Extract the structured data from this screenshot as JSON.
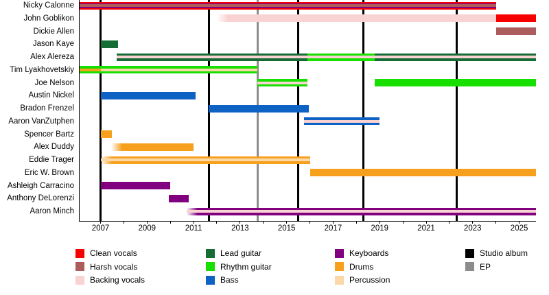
{
  "chart_data": {
    "type": "bar",
    "subtype": "gantt_member_timeline",
    "title": "",
    "x_axis": {
      "min": 2006.1,
      "max": 2025.72,
      "tick_years": [
        2006,
        2007,
        2008,
        2009,
        2010,
        2011,
        2012,
        2013,
        2014,
        2015,
        2016,
        2017,
        2018,
        2019,
        2020,
        2021,
        2022,
        2023,
        2024,
        2025
      ],
      "label_years": [
        "2007",
        "2009",
        "2011",
        "2013",
        "2015",
        "2017",
        "2019",
        "2021",
        "2023",
        "2025"
      ],
      "grid": false
    },
    "colors": {
      "clean_vocals": "#F70000",
      "harsh_vocals": "#AC5C5C",
      "backing_vocals": "#F9D2D2",
      "lead_guitar": "#156C35",
      "rhythm_guitar": "#17E000",
      "bass": "#0E62C4",
      "keyboards": "#800080",
      "drums": "#F7A01E",
      "percussion": "#FAD8A8",
      "studio_album": "#000000",
      "ep": "#8C8C8C"
    },
    "events": {
      "studio_albums": [
        2007.0,
        2011.65,
        2015.5,
        2018.3,
        2022.3
      ],
      "eps": [
        2013.75
      ]
    },
    "members": [
      {
        "name": "Nicky Calonne",
        "segments": [
          {
            "role": "clean_vocals",
            "start": 2006.1,
            "end": 2024.0,
            "stripes": [
              {
                "role": "keyboards",
                "height": 7
              },
              {
                "role": "harsh_vocals",
                "height": 4
              }
            ]
          }
        ]
      },
      {
        "name": "John Goblikon",
        "segments": [
          {
            "role": "backing_vocals",
            "start": 2012.0,
            "end": 2024.0,
            "fade_in": true
          },
          {
            "role": "clean_vocals",
            "start": 2024.0,
            "end": 2025.72
          }
        ]
      },
      {
        "name": "Dickie Allen",
        "segments": [
          {
            "role": "harsh_vocals",
            "start": 2024.0,
            "end": 2025.72
          }
        ]
      },
      {
        "name": "Jason Kaye",
        "segments": [
          {
            "role": "lead_guitar",
            "start": 2007.0,
            "end": 2007.75
          }
        ]
      },
      {
        "name": "Alex Alereza",
        "segments": [
          {
            "role": "lead_guitar",
            "start": 2007.7,
            "end": 2025.72,
            "stripes": [
              {
                "role": "backing_vocals",
                "height": 4
              }
            ]
          },
          {
            "role": "rhythm_guitar",
            "start": 2015.9,
            "end": 2018.8
          }
        ]
      },
      {
        "name": "Tim Lyakhovetskiy",
        "segments": [
          {
            "role": "rhythm_guitar",
            "start": 2006.1,
            "end": 2013.75,
            "stripes": [
              {
                "role": "drums",
                "start": 2006.1,
                "end": 2007.0,
                "height": 4
              },
              {
                "role": "percussion",
                "start": 2007.0,
                "end": 2013.75,
                "height": 4
              }
            ]
          }
        ]
      },
      {
        "name": "Joe Nelson",
        "segments": [
          {
            "role": "rhythm_guitar",
            "start": 2013.75,
            "end": 2015.9,
            "stripes": [
              {
                "role": "backing_vocals",
                "height": 4
              }
            ]
          },
          {
            "role": "rhythm_guitar",
            "start": 2018.8,
            "end": 2025.72
          }
        ]
      },
      {
        "name": "Austin Nickel",
        "segments": [
          {
            "role": "bass",
            "start": 2007.0,
            "end": 2011.1
          }
        ]
      },
      {
        "name": "Bradon Frenzel",
        "segments": [
          {
            "role": "bass",
            "start": 2011.65,
            "end": 2015.95
          }
        ]
      },
      {
        "name": "Aaron VanZutphen",
        "segments": [
          {
            "role": "bass",
            "start": 2015.75,
            "end": 2019.0,
            "stripes": [
              {
                "role": "backing_vocals",
                "height": 4
              }
            ]
          }
        ]
      },
      {
        "name": "Spencer Bartz",
        "segments": [
          {
            "role": "drums",
            "start": 2007.0,
            "end": 2007.5
          }
        ]
      },
      {
        "name": "Alex Duddy",
        "segments": [
          {
            "role": "drums",
            "start": 2007.45,
            "end": 2011.0,
            "fade_in": true
          }
        ]
      },
      {
        "name": "Eddie Trager",
        "segments": [
          {
            "role": "drums",
            "start": 2007.0,
            "end": 2016.0,
            "fade_in": true,
            "stripes": [
              {
                "role": "percussion",
                "height": 4
              }
            ]
          }
        ]
      },
      {
        "name": "Eric W. Brown",
        "segments": [
          {
            "role": "drums",
            "start": 2016.0,
            "end": 2025.72
          }
        ]
      },
      {
        "name": "Ashleigh Carracino",
        "segments": [
          {
            "role": "keyboards",
            "start": 2007.0,
            "end": 2010.0
          }
        ]
      },
      {
        "name": "Anthony DeLorenzi",
        "segments": [
          {
            "role": "keyboards",
            "start": 2009.95,
            "end": 2010.8
          }
        ]
      },
      {
        "name": "Aaron Minch",
        "segments": [
          {
            "role": "keyboards",
            "start": 2010.7,
            "end": 2025.72,
            "fade_in": true,
            "stripes": [
              {
                "role": "backing_vocals",
                "height": 4
              }
            ]
          }
        ]
      }
    ]
  },
  "legend": {
    "columns": [
      [
        {
          "label": "Clean vocals",
          "color_key": "clean_vocals"
        },
        {
          "label": "Harsh vocals",
          "color_key": "harsh_vocals"
        },
        {
          "label": "Backing vocals",
          "color_key": "backing_vocals"
        }
      ],
      [
        {
          "label": "Lead guitar",
          "color_key": "lead_guitar"
        },
        {
          "label": "Rhythm guitar",
          "color_key": "rhythm_guitar"
        },
        {
          "label": "Bass",
          "color_key": "bass"
        }
      ],
      [
        {
          "label": "Keyboards",
          "color_key": "keyboards"
        },
        {
          "label": "Drums",
          "color_key": "drums"
        },
        {
          "label": "Percussion",
          "color_key": "percussion"
        }
      ],
      [
        {
          "label": "Studio album",
          "color_key": "studio_album"
        },
        {
          "label": "EP",
          "color_key": "ep"
        }
      ]
    ]
  }
}
